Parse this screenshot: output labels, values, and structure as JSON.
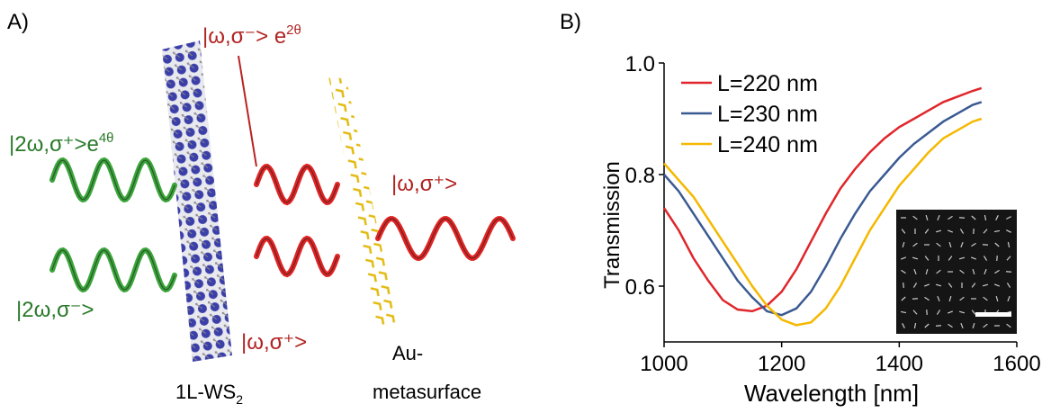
{
  "panel_a": {
    "label": "A)",
    "ket_reflect_top": {
      "ket": "|ω,σ⁻>",
      "phase": "e",
      "phase_exp": "2θ"
    },
    "ket_green_top": {
      "ket": "|2ω,σ⁺>",
      "phase": "e",
      "phase_exp": "4θ"
    },
    "ket_incident": {
      "ket": "|ω,σ⁺>"
    },
    "ket_green_bottom": {
      "ket": "|2ω,σ⁻>"
    },
    "ket_reflect_bottom": {
      "ket": "|ω,σ⁺>"
    },
    "ws2_label": {
      "text": "1L-WS",
      "sub": "2"
    },
    "meta_label": [
      "Au-",
      "metasurface"
    ]
  },
  "panel_b": {
    "label": "B)"
  },
  "chart_data": {
    "type": "line",
    "xlabel": "Wavelength [nm]",
    "ylabel": "Transmission",
    "x": [
      1000,
      1025,
      1050,
      1075,
      1100,
      1125,
      1150,
      1175,
      1200,
      1225,
      1250,
      1275,
      1300,
      1325,
      1350,
      1375,
      1400,
      1425,
      1450,
      1475,
      1500,
      1525,
      1540
    ],
    "series": [
      {
        "name": "L=220 nm",
        "color": "#e0262b",
        "values": [
          0.74,
          0.7,
          0.65,
          0.61,
          0.575,
          0.558,
          0.555,
          0.565,
          0.59,
          0.63,
          0.68,
          0.73,
          0.775,
          0.81,
          0.84,
          0.865,
          0.885,
          0.9,
          0.915,
          0.93,
          0.94,
          0.95,
          0.955
        ]
      },
      {
        "name": "L=230 nm",
        "color": "#3a5a92",
        "values": [
          0.8,
          0.77,
          0.73,
          0.69,
          0.65,
          0.61,
          0.58,
          0.555,
          0.548,
          0.56,
          0.59,
          0.635,
          0.685,
          0.73,
          0.77,
          0.8,
          0.83,
          0.855,
          0.875,
          0.895,
          0.91,
          0.925,
          0.93
        ]
      },
      {
        "name": "L=240 nm",
        "color": "#f5b800",
        "values": [
          0.82,
          0.79,
          0.76,
          0.72,
          0.68,
          0.64,
          0.6,
          0.565,
          0.54,
          0.53,
          0.535,
          0.56,
          0.6,
          0.65,
          0.7,
          0.74,
          0.78,
          0.81,
          0.84,
          0.865,
          0.88,
          0.895,
          0.9
        ]
      }
    ],
    "xlim": [
      1000,
      1600
    ],
    "ylim": [
      0.5,
      1.0
    ],
    "xticks": [
      1000,
      1200,
      1400,
      1600
    ],
    "yticks": [
      0.6,
      0.8,
      {
        "value": 1,
        "label": "1.0"
      }
    ]
  }
}
